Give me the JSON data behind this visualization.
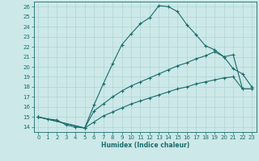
{
  "xlabel": "Humidex (Indice chaleur)",
  "xlim": [
    -0.5,
    23.5
  ],
  "ylim": [
    13.5,
    26.5
  ],
  "xticks": [
    0,
    1,
    2,
    3,
    4,
    5,
    6,
    7,
    8,
    9,
    10,
    11,
    12,
    13,
    14,
    15,
    16,
    17,
    18,
    19,
    20,
    21,
    22,
    23
  ],
  "yticks": [
    14,
    15,
    16,
    17,
    18,
    19,
    20,
    21,
    22,
    23,
    24,
    25,
    26
  ],
  "bg_color": "#cce8e8",
  "line_color": "#1a6b6b",
  "line1_x": [
    0,
    1,
    2,
    3,
    4,
    5,
    6,
    7,
    8,
    9,
    10,
    11,
    12,
    13,
    14,
    15,
    16,
    17,
    18,
    19,
    20,
    21,
    22,
    23
  ],
  "line1_y": [
    15,
    14.8,
    14.7,
    14.2,
    14.0,
    13.9,
    16.2,
    18.3,
    20.3,
    22.2,
    23.3,
    24.3,
    24.9,
    26.1,
    26.0,
    25.5,
    24.2,
    23.2,
    22.1,
    21.7,
    21.0,
    19.8,
    19.3,
    18.0
  ],
  "line2_x": [
    0,
    5,
    6,
    7,
    8,
    9,
    10,
    11,
    12,
    13,
    14,
    15,
    16,
    17,
    18,
    19,
    20,
    21,
    22,
    23
  ],
  "line2_y": [
    15,
    13.9,
    15.6,
    16.3,
    17.0,
    17.6,
    18.1,
    18.5,
    18.9,
    19.3,
    19.7,
    20.1,
    20.4,
    20.8,
    21.1,
    21.5,
    21.0,
    21.2,
    17.8,
    17.8
  ],
  "line3_x": [
    0,
    5,
    6,
    7,
    8,
    9,
    10,
    11,
    12,
    13,
    14,
    15,
    16,
    17,
    18,
    19,
    20,
    21,
    22,
    23
  ],
  "line3_y": [
    15,
    13.9,
    14.5,
    15.1,
    15.5,
    15.9,
    16.3,
    16.6,
    16.9,
    17.2,
    17.5,
    17.8,
    18.0,
    18.3,
    18.5,
    18.7,
    18.9,
    19.0,
    17.8,
    17.8
  ]
}
